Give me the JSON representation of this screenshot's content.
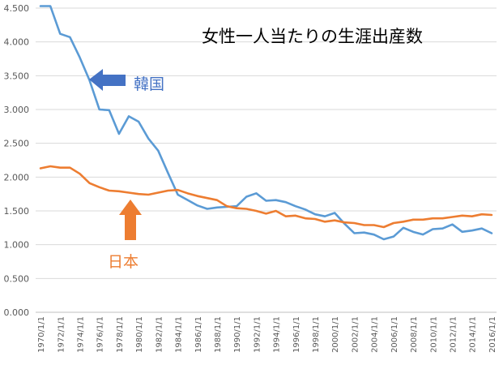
{
  "chart_data": {
    "type": "line",
    "title": "女性一人当たりの生涯出産数",
    "xlabel": "",
    "ylabel": "",
    "ylim": [
      0,
      4.5
    ],
    "yticks": [
      "0.000",
      "0.500",
      "1.000",
      "1.500",
      "2.000",
      "2.500",
      "3.000",
      "3.500",
      "4.000",
      "4.500"
    ],
    "x": [
      "1970/1/1",
      "1971/1/1",
      "1972/1/1",
      "1973/1/1",
      "1974/1/1",
      "1975/1/1",
      "1976/1/1",
      "1977/1/1",
      "1978/1/1",
      "1979/1/1",
      "1980/1/1",
      "1981/1/1",
      "1982/1/1",
      "1983/1/1",
      "1984/1/1",
      "1985/1/1",
      "1986/1/1",
      "1987/1/1",
      "1988/1/1",
      "1989/1/1",
      "1990/1/1",
      "1991/1/1",
      "1992/1/1",
      "1993/1/1",
      "1994/1/1",
      "1995/1/1",
      "1996/1/1",
      "1997/1/1",
      "1998/1/1",
      "1999/1/1",
      "2000/1/1",
      "2001/1/1",
      "2002/1/1",
      "2003/1/1",
      "2004/1/1",
      "2005/1/1",
      "2006/1/1",
      "2007/1/1",
      "2008/1/1",
      "2009/1/1",
      "2010/1/1",
      "2011/1/1",
      "2012/1/1",
      "2013/1/1",
      "2014/1/1",
      "2015/1/1",
      "2016/1/1"
    ],
    "xtick_labels": [
      "1970/1/1",
      "1972/1/1",
      "1974/1/1",
      "1976/1/1",
      "1978/1/1",
      "1980/1/1",
      "1982/1/1",
      "1984/1/1",
      "1986/1/1",
      "1988/1/1",
      "1990/1/1",
      "1992/1/1",
      "1994/1/1",
      "1996/1/1",
      "1998/1/1",
      "2000/1/1",
      "2002/1/1",
      "2004/1/1",
      "2006/1/1",
      "2008/1/1",
      "2010/1/1",
      "2012/1/1",
      "2014/1/1",
      "2016/1/1"
    ],
    "series": [
      {
        "name": "韓国",
        "color": "#5B9BD5",
        "values": [
          4.53,
          4.53,
          4.12,
          4.07,
          3.77,
          3.43,
          3.0,
          2.99,
          2.64,
          2.9,
          2.82,
          2.57,
          2.39,
          2.06,
          1.74,
          1.66,
          1.58,
          1.53,
          1.55,
          1.56,
          1.57,
          1.71,
          1.76,
          1.65,
          1.66,
          1.63,
          1.57,
          1.52,
          1.45,
          1.42,
          1.47,
          1.31,
          1.17,
          1.18,
          1.15,
          1.08,
          1.12,
          1.25,
          1.19,
          1.15,
          1.23,
          1.24,
          1.3,
          1.19,
          1.21,
          1.24,
          1.17
        ]
      },
      {
        "name": "日本",
        "color": "#ED7D31",
        "values": [
          2.13,
          2.16,
          2.14,
          2.14,
          2.05,
          1.91,
          1.85,
          1.8,
          1.79,
          1.77,
          1.75,
          1.74,
          1.77,
          1.8,
          1.81,
          1.76,
          1.72,
          1.69,
          1.66,
          1.57,
          1.54,
          1.53,
          1.5,
          1.46,
          1.5,
          1.42,
          1.43,
          1.39,
          1.38,
          1.34,
          1.36,
          1.33,
          1.32,
          1.29,
          1.29,
          1.26,
          1.32,
          1.34,
          1.37,
          1.37,
          1.39,
          1.39,
          1.41,
          1.43,
          1.42,
          1.45,
          1.44
        ]
      }
    ],
    "annotations": [
      {
        "text": "韓国",
        "series": "韓国",
        "color": "#4472C4",
        "arrow": "left"
      },
      {
        "text": "日本",
        "series": "日本",
        "color": "#ED7D31",
        "arrow": "up"
      }
    ]
  }
}
